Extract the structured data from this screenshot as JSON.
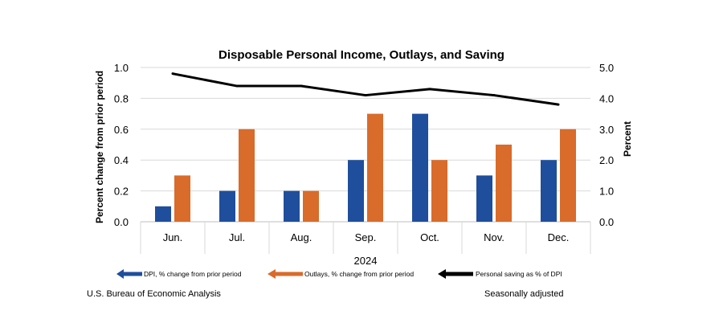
{
  "chart_data": {
    "type": "bar",
    "title": "Disposable Personal Income, Outlays, and Saving",
    "xlabel": "2024",
    "ylabel_left": "Percent change from prior period",
    "ylabel_right": "Percent",
    "categories": [
      "Jun.",
      "Jul.",
      "Aug.",
      "Sep.",
      "Oct.",
      "Nov.",
      "Dec."
    ],
    "ylim_left": [
      0,
      1.0
    ],
    "ylim_right": [
      0,
      5.0
    ],
    "yticks_left": [
      "0.0",
      "0.2",
      "0.4",
      "0.6",
      "0.8",
      "1.0"
    ],
    "yticks_right": [
      "0.0",
      "1.0",
      "2.0",
      "3.0",
      "4.0",
      "5.0"
    ],
    "grid": true,
    "legend_position": "bottom",
    "series": [
      {
        "name": "DPI, % change from prior period",
        "type": "bar",
        "axis": "left",
        "color": "#1f4e9c",
        "values": [
          0.1,
          0.2,
          0.2,
          0.4,
          0.7,
          0.3,
          0.4
        ]
      },
      {
        "name": "Outlays, % change from prior period",
        "type": "bar",
        "axis": "left",
        "color": "#d96b2b",
        "values": [
          0.3,
          0.6,
          0.2,
          0.7,
          0.4,
          0.5,
          0.6
        ]
      },
      {
        "name": "Personal saving as % of DPI",
        "type": "line",
        "axis": "right",
        "color": "#000000",
        "values": [
          4.8,
          4.4,
          4.4,
          4.1,
          4.3,
          4.1,
          3.8
        ]
      }
    ]
  },
  "footer": {
    "source": "U.S. Bureau of Economic Analysis",
    "note": "Seasonally adjusted"
  }
}
